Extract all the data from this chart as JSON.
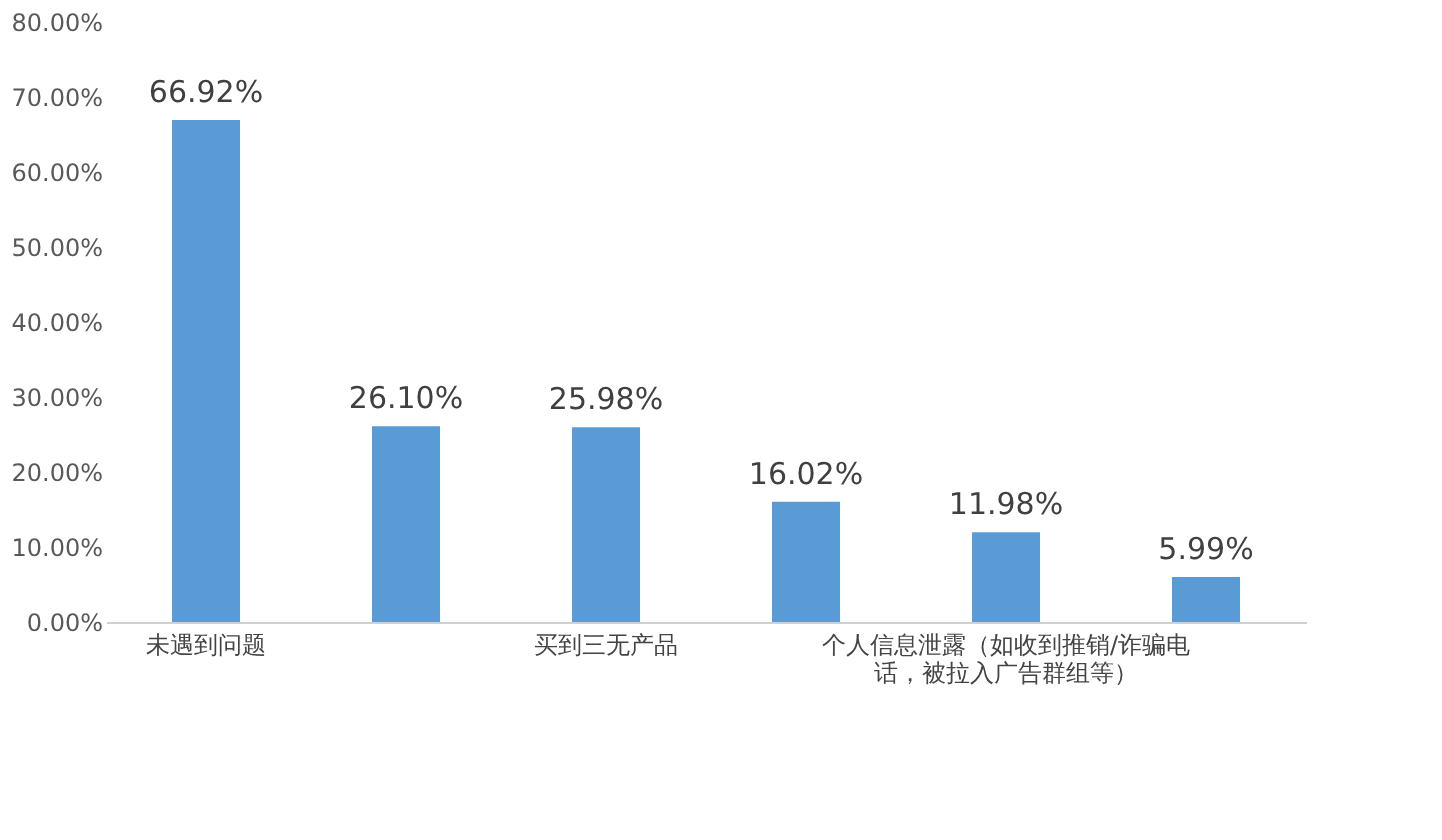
{
  "chart_data": {
    "type": "bar",
    "categories": [
      "未遇到问题",
      null,
      "买到三无产品",
      null,
      "个人信息泄露（如收到推销/诈骗电话，被拉入广告群组等）",
      null
    ],
    "values": [
      66.92,
      26.1,
      25.98,
      16.02,
      11.98,
      5.99
    ],
    "value_labels": [
      "66.92%",
      "26.10%",
      "25.98%",
      "16.02%",
      "11.98%",
      "5.99%"
    ],
    "color": "#5b9bd5",
    "ylim": [
      0,
      80
    ],
    "yticks": [
      {
        "value": 0,
        "label": "0.00%"
      },
      {
        "value": 10,
        "label": "10.00%"
      },
      {
        "value": 20,
        "label": "20.00%"
      },
      {
        "value": 30,
        "label": "30.00%"
      },
      {
        "value": 40,
        "label": "40.00%"
      },
      {
        "value": 50,
        "label": "50.00%"
      },
      {
        "value": 60,
        "label": "60.00%"
      },
      {
        "value": 70,
        "label": "70.00%"
      },
      {
        "value": 80,
        "label": "80.00%"
      }
    ],
    "grid": false
  }
}
